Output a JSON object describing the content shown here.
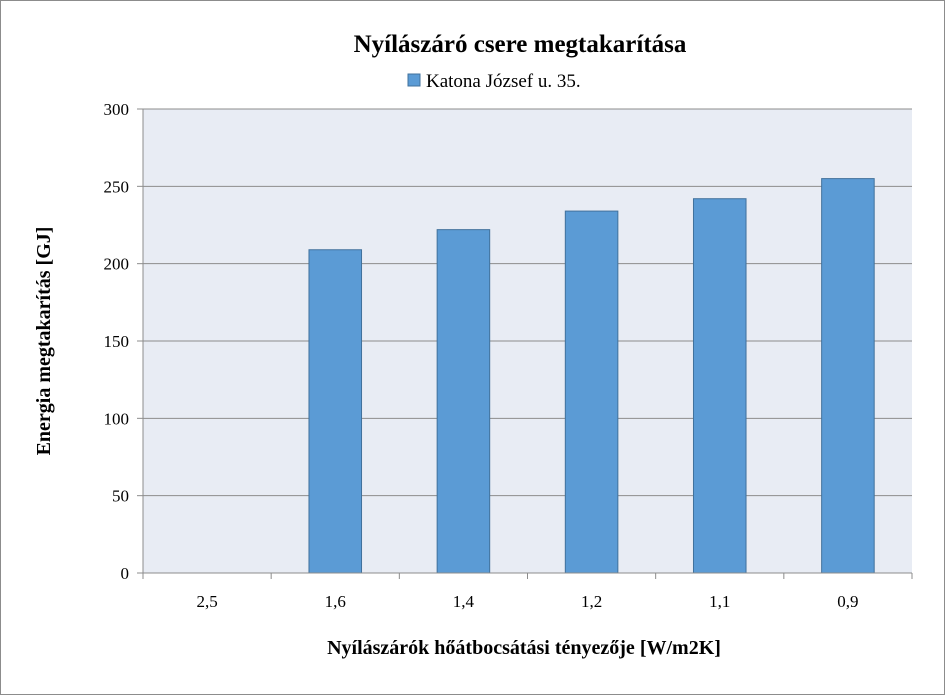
{
  "chart_data": {
    "type": "bar",
    "title": "Nyílászáró  csere  megtakarítása",
    "xlabel": "Nyílászárók  hőátbocsátási tényezője [W/m2K]",
    "ylabel": "Energia megtakarítás [GJ]",
    "categories": [
      "2,5",
      "1,6",
      "1,4",
      "1,2",
      "1,1",
      "0,9"
    ],
    "series": [
      {
        "name": "Katona József u. 35.",
        "values": [
          0,
          209,
          222,
          234,
          242,
          255
        ],
        "color": "#5b9bd5"
      }
    ],
    "ylim": [
      0,
      300
    ],
    "yticks": [
      "0",
      "50",
      "100",
      "150",
      "200",
      "250",
      "300"
    ],
    "grid": true,
    "legend_position": "top",
    "plot_background": "#e8ecf4"
  }
}
